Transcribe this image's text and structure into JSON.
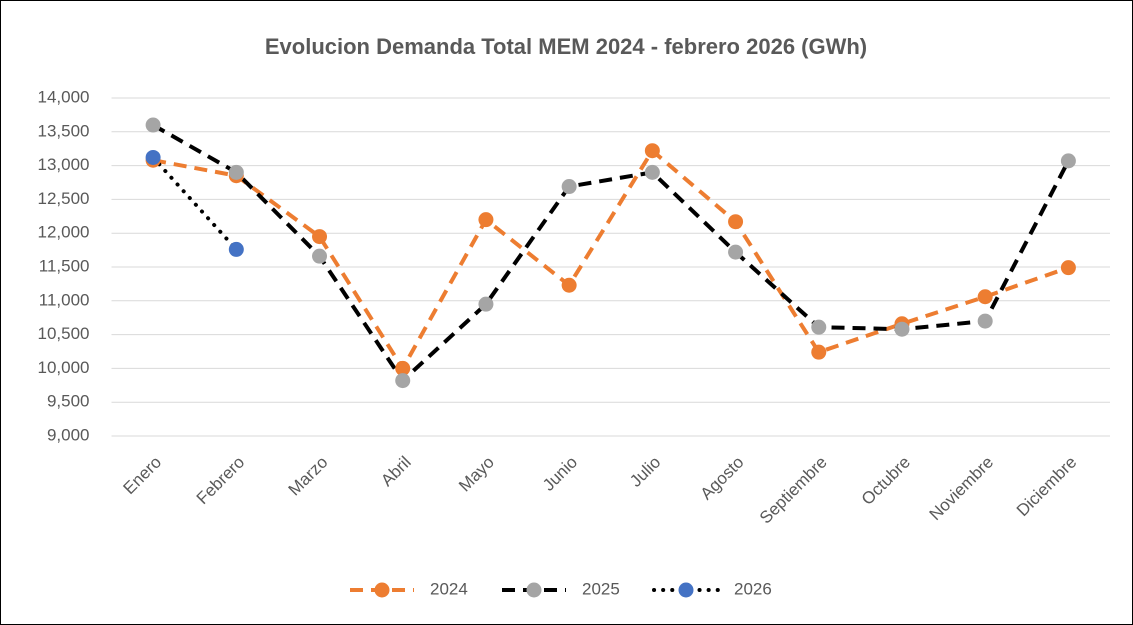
{
  "chart_data": {
    "type": "line",
    "title": "Evolucion Demanda Total MEM 2024 - febrero 2026 (GWh)",
    "categories": [
      "Enero",
      "Febrero",
      "Marzo",
      "Abril",
      "Mayo",
      "Junio",
      "Julio",
      "Agosto",
      "Septiembre",
      "Octubre",
      "Noviembre",
      "Diciembre"
    ],
    "series": [
      {
        "name": "2024",
        "color": "#ed7d31",
        "marker_color": "#ed7d31",
        "line_style": "dashed",
        "values": [
          13080,
          12850,
          11950,
          10000,
          12200,
          11230,
          13220,
          12170,
          10240,
          10660,
          11060,
          11490
        ]
      },
      {
        "name": "2025",
        "color": "#000000",
        "marker_color": "#a5a5a5",
        "line_style": "dashed",
        "values": [
          13600,
          12900,
          11660,
          9820,
          10950,
          12690,
          12900,
          11720,
          10610,
          10580,
          10700,
          13070
        ]
      },
      {
        "name": "2026",
        "color": "#000000",
        "marker_color": "#4472c4",
        "line_style": "dotted",
        "values": [
          13120,
          11760,
          null,
          null,
          null,
          null,
          null,
          null,
          null,
          null,
          null,
          null
        ]
      }
    ],
    "ylim": [
      9000,
      14000
    ],
    "yticks": [
      {
        "value": 9000,
        "label": "9,000"
      },
      {
        "value": 9500,
        "label": "9,500"
      },
      {
        "value": 10000,
        "label": "10,000"
      },
      {
        "value": 10500,
        "label": "10,500"
      },
      {
        "value": 11000,
        "label": "11,000"
      },
      {
        "value": 11500,
        "label": "11,500"
      },
      {
        "value": 12000,
        "label": "12,000"
      },
      {
        "value": 12500,
        "label": "12,500"
      },
      {
        "value": 13000,
        "label": "13,000"
      },
      {
        "value": 13500,
        "label": "13,500"
      },
      {
        "value": 14000,
        "label": "14,000"
      }
    ],
    "grid": true,
    "legend": "bottom"
  }
}
